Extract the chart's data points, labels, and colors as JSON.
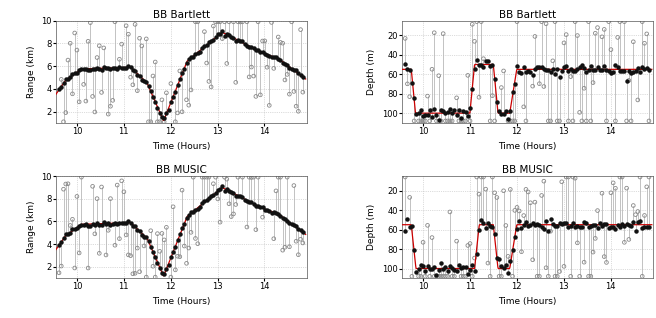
{
  "titles": [
    "BB Bartlett",
    "BB Bartlett",
    "BB MUSIC",
    "BB MUSIC"
  ],
  "xlabel": "Time (Hours)",
  "ylabels_range": "Range (km)",
  "ylabels_depth": "Depth (m)",
  "xlim": [
    9.55,
    14.9
  ],
  "range_ylim": [
    1,
    10
  ],
  "range_yticks": [
    2,
    4,
    6,
    8,
    10
  ],
  "depth_ylim": [
    110,
    5
  ],
  "depth_yticks": [
    20,
    40,
    60,
    80,
    100
  ],
  "xticks": [
    10,
    11,
    12,
    13,
    14
  ],
  "true_color": "#cc0000",
  "dot_color": "#111111",
  "circle_color": "#888888",
  "stem_color": "#aaaaaa",
  "bg_color": "#ffffff",
  "title_fontsize": 7.5,
  "axis_fontsize": 6.5,
  "tick_fontsize": 6
}
